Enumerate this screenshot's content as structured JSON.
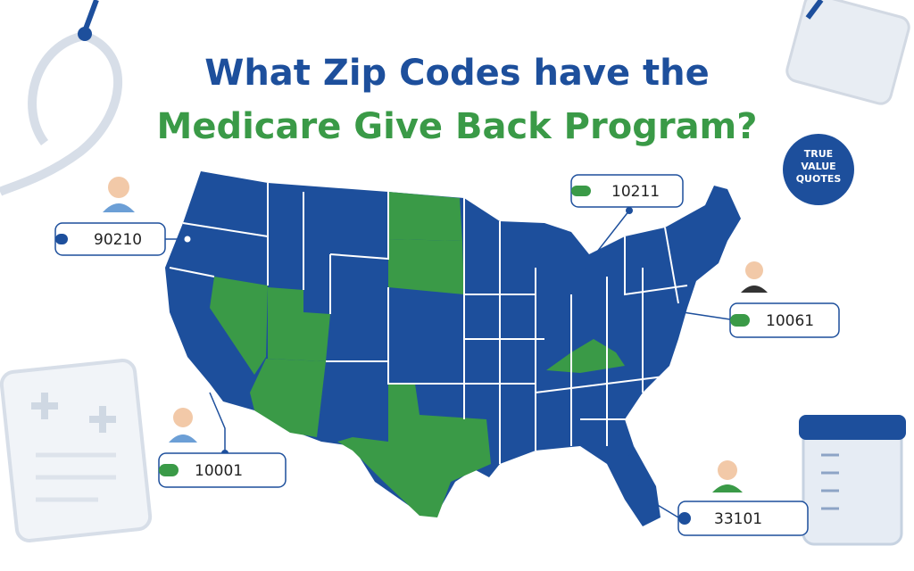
{
  "title": {
    "line1": "What Zip Codes have the",
    "line2": "Medicare Give Back Program?"
  },
  "logo": {
    "lines": [
      "TRUE",
      "VALUE",
      "QUOTES"
    ]
  },
  "callouts": [
    {
      "zip": "90210"
    },
    {
      "zip": "10211"
    },
    {
      "zip": "10061"
    },
    {
      "zip": "10001"
    },
    {
      "zip": "33101"
    }
  ]
}
